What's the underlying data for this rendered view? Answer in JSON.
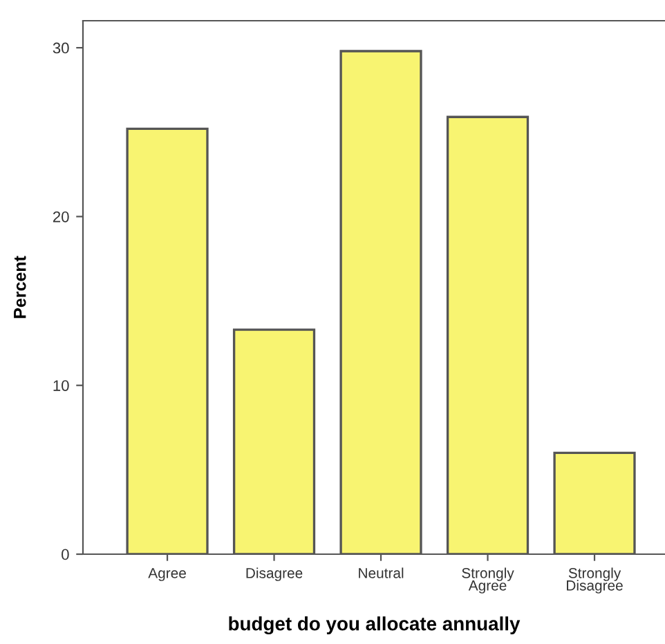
{
  "chart_data": {
    "type": "bar",
    "xlabel": "budget do you allocate annually",
    "ylabel": "Percent",
    "categories": [
      "Agree",
      "Disagree",
      "Neutral",
      "Strongly\nAgree",
      "Strongly\nDisagree"
    ],
    "values": [
      25.2,
      13.3,
      29.8,
      25.9,
      6.0
    ],
    "color": "#f8f471",
    "ylim": [
      0,
      31.6
    ],
    "yticks": [
      0,
      10,
      20,
      30
    ],
    "grid": false
  }
}
